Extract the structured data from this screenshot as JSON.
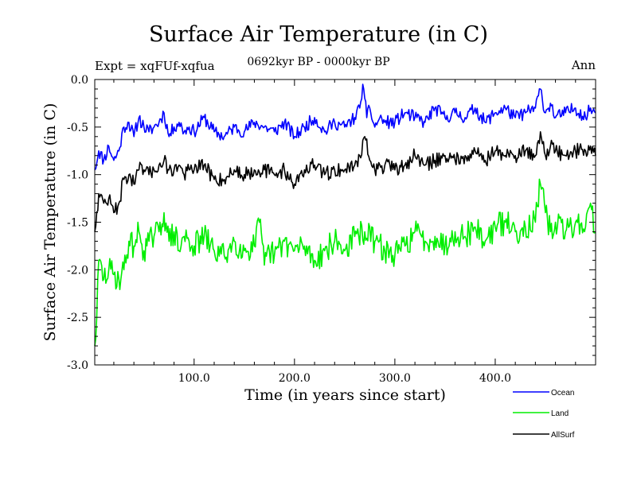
{
  "chart_data": {
    "type": "line",
    "title": "Surface Air Temperature (in C)",
    "subtitle": "0692kyr BP - 0000kyr BP",
    "experiment": "Expt = xqFUf-xqfua",
    "season": "Ann",
    "xlabel": "Time (in years since start)",
    "ylabel": "Surface Air Temperature (in C)",
    "xlim": [
      1,
      500
    ],
    "ylim": [
      -3.0,
      0.0
    ],
    "x_ticks": [
      {
        "value": 100,
        "label": "100.0"
      },
      {
        "value": 200,
        "label": "200.0"
      },
      {
        "value": 300,
        "label": "300.0"
      },
      {
        "value": 400,
        "label": "400.0"
      }
    ],
    "y_ticks": [
      {
        "value": 0.0,
        "label": "0.0"
      },
      {
        "value": -0.5,
        "label": "-0.5"
      },
      {
        "value": -1.0,
        "label": "-1.0"
      },
      {
        "value": -1.5,
        "label": "-1.5"
      },
      {
        "value": -2.0,
        "label": "-2.0"
      },
      {
        "value": -2.5,
        "label": "-2.5"
      },
      {
        "value": -3.0,
        "label": "-3.0"
      }
    ],
    "legend_position": "bottom-right",
    "series": [
      {
        "name": "Ocean",
        "color": "#0000ff",
        "x": [
          1,
          5,
          10,
          15,
          20,
          25,
          30,
          35,
          40,
          45,
          50,
          55,
          60,
          65,
          70,
          75,
          80,
          85,
          90,
          95,
          100,
          110,
          120,
          130,
          140,
          150,
          160,
          170,
          180,
          190,
          200,
          210,
          220,
          230,
          240,
          250,
          260,
          265,
          268,
          270,
          272,
          275,
          280,
          285,
          290,
          300,
          310,
          320,
          330,
          340,
          350,
          360,
          370,
          380,
          390,
          400,
          410,
          420,
          430,
          440,
          445,
          450,
          455,
          460,
          470,
          480,
          490,
          495,
          500
        ],
        "values": [
          -0.95,
          -0.75,
          -0.85,
          -0.7,
          -0.85,
          -0.75,
          -0.5,
          -0.45,
          -0.6,
          -0.4,
          -0.5,
          -0.55,
          -0.5,
          -0.45,
          -0.35,
          -0.6,
          -0.5,
          -0.45,
          -0.55,
          -0.5,
          -0.55,
          -0.4,
          -0.55,
          -0.6,
          -0.5,
          -0.55,
          -0.45,
          -0.5,
          -0.55,
          -0.45,
          -0.6,
          -0.5,
          -0.4,
          -0.55,
          -0.45,
          -0.5,
          -0.4,
          -0.3,
          -0.05,
          -0.2,
          -0.4,
          -0.3,
          -0.5,
          -0.4,
          -0.45,
          -0.45,
          -0.35,
          -0.4,
          -0.45,
          -0.3,
          -0.4,
          -0.35,
          -0.4,
          -0.3,
          -0.45,
          -0.35,
          -0.3,
          -0.4,
          -0.35,
          -0.3,
          -0.1,
          -0.35,
          -0.25,
          -0.4,
          -0.35,
          -0.3,
          -0.4,
          -0.3,
          -0.35
        ]
      },
      {
        "name": "Land",
        "color": "#00ee00",
        "x": [
          1,
          3,
          5,
          10,
          15,
          20,
          25,
          30,
          35,
          40,
          45,
          50,
          55,
          60,
          65,
          70,
          75,
          80,
          85,
          90,
          95,
          100,
          110,
          120,
          130,
          140,
          150,
          160,
          165,
          170,
          175,
          180,
          190,
          200,
          210,
          220,
          230,
          240,
          250,
          260,
          270,
          280,
          290,
          300,
          310,
          320,
          330,
          340,
          350,
          360,
          370,
          380,
          390,
          400,
          410,
          420,
          430,
          440,
          445,
          450,
          455,
          460,
          470,
          480,
          490,
          495,
          500
        ],
        "values": [
          -2.8,
          -2.5,
          -1.9,
          -2.1,
          -2.0,
          -2.05,
          -2.1,
          -2.0,
          -1.7,
          -1.75,
          -1.6,
          -1.8,
          -1.7,
          -1.65,
          -1.6,
          -1.4,
          -1.7,
          -1.6,
          -1.8,
          -1.65,
          -1.7,
          -1.75,
          -1.65,
          -1.8,
          -1.85,
          -1.7,
          -1.8,
          -1.75,
          -1.5,
          -1.95,
          -1.8,
          -1.85,
          -1.7,
          -1.8,
          -1.75,
          -1.9,
          -1.8,
          -1.7,
          -1.8,
          -1.65,
          -1.6,
          -1.7,
          -1.8,
          -1.85,
          -1.75,
          -1.6,
          -1.7,
          -1.65,
          -1.75,
          -1.6,
          -1.65,
          -1.55,
          -1.7,
          -1.55,
          -1.5,
          -1.6,
          -1.55,
          -1.5,
          -1.1,
          -1.4,
          -1.6,
          -1.5,
          -1.6,
          -1.5,
          -1.55,
          -1.3,
          -1.6
        ]
      },
      {
        "name": "AllSurf",
        "color": "#000000",
        "x": [
          1,
          5,
          10,
          15,
          20,
          25,
          30,
          35,
          40,
          45,
          50,
          55,
          60,
          65,
          70,
          75,
          80,
          85,
          90,
          95,
          100,
          110,
          120,
          130,
          140,
          150,
          160,
          170,
          180,
          190,
          200,
          210,
          220,
          230,
          240,
          250,
          260,
          265,
          270,
          275,
          280,
          290,
          300,
          310,
          320,
          330,
          340,
          350,
          360,
          370,
          380,
          390,
          400,
          410,
          420,
          430,
          440,
          445,
          450,
          455,
          460,
          470,
          480,
          490,
          495,
          500
        ],
        "values": [
          -1.6,
          -1.2,
          -1.3,
          -1.25,
          -1.4,
          -1.3,
          -1.05,
          -1.0,
          -1.1,
          -0.95,
          -0.95,
          -1.0,
          -0.95,
          -0.9,
          -0.85,
          -0.95,
          -0.95,
          -0.9,
          -1.0,
          -0.95,
          -0.95,
          -0.9,
          -1.05,
          -1.05,
          -0.95,
          -1.0,
          -0.95,
          -0.95,
          -1.0,
          -0.95,
          -1.1,
          -0.95,
          -0.9,
          -1.0,
          -0.95,
          -0.95,
          -0.9,
          -0.8,
          -0.6,
          -0.85,
          -0.95,
          -0.9,
          -0.95,
          -0.9,
          -0.8,
          -0.9,
          -0.85,
          -0.8,
          -0.85,
          -0.8,
          -0.75,
          -0.85,
          -0.75,
          -0.8,
          -0.8,
          -0.75,
          -0.8,
          -0.55,
          -0.8,
          -0.7,
          -0.75,
          -0.8,
          -0.75,
          -0.75,
          -0.7,
          -0.8
        ]
      }
    ]
  }
}
